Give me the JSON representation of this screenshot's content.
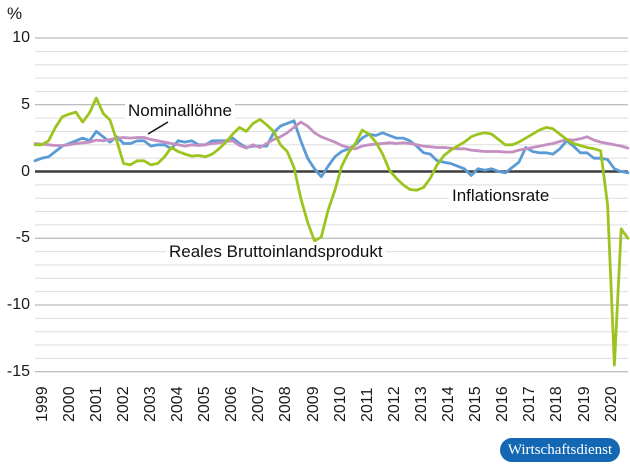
{
  "chart": {
    "unit_label": "%",
    "y_tick_labels": [
      "10",
      "5",
      "0",
      "-5",
      "-10",
      "-15"
    ],
    "x_year_labels": [
      "1999",
      "2000",
      "2001",
      "2002",
      "2003",
      "2004",
      "2005",
      "2006",
      "2007",
      "2008",
      "2009",
      "2010",
      "2011",
      "2012",
      "2013",
      "2014",
      "2015",
      "2016",
      "2017",
      "2018",
      "2019",
      "2020"
    ],
    "annotations": {
      "nominal": "Nominallöhne",
      "inflation": "Inflationsrate",
      "gdp": "Reales Bruttoinlandsprodukt"
    },
    "colors": {
      "gdp_line": "#9cc41f",
      "inflation_line": "#5b9bd5",
      "wages_line": "#c48fc1",
      "zero_line": "#3d3d3d",
      "grid_minor": "#dedede",
      "grid_major": "#a8a8a8",
      "annotation_leader": "#1a1a1a",
      "badge_bg": "#1467b3",
      "badge_text": "#ffffff"
    },
    "badge": {
      "label": "Wirtschaftsdienst"
    }
  },
  "chart_data": {
    "type": "line",
    "frequency": "quarterly",
    "x_start": "1999Q1",
    "x_end": "2020Q4",
    "ylabel": "%",
    "ylim": [
      -15,
      10
    ],
    "grid": "horizontal, every 1 unit; darker at multiples of 5; bold zero line",
    "legend_position": "inline annotations with leader line",
    "series": [
      {
        "name": "Inflationsrate",
        "color": "#5b9bd5",
        "values": [
          0.8,
          1.0,
          1.1,
          1.5,
          1.9,
          2.1,
          2.3,
          2.5,
          2.3,
          3.0,
          2.6,
          2.2,
          2.6,
          2.1,
          2.1,
          2.3,
          2.3,
          1.9,
          2.0,
          2.0,
          1.7,
          2.3,
          2.2,
          2.3,
          2.0,
          2.0,
          2.3,
          2.3,
          2.3,
          2.5,
          2.1,
          1.8,
          1.9,
          1.9,
          1.9,
          2.9,
          3.4,
          3.6,
          3.8,
          2.3,
          1.0,
          0.2,
          -0.4,
          0.4,
          1.1,
          1.5,
          1.7,
          2.0,
          2.5,
          2.8,
          2.7,
          2.9,
          2.7,
          2.5,
          2.5,
          2.3,
          1.9,
          1.4,
          1.3,
          0.8,
          0.7,
          0.6,
          0.4,
          0.2,
          -0.3,
          0.2,
          0.1,
          0.2,
          0.0,
          -0.1,
          0.3,
          0.7,
          1.8,
          1.5,
          1.4,
          1.4,
          1.3,
          1.7,
          2.3,
          1.9,
          1.4,
          1.4,
          1.0,
          1.0,
          0.9,
          0.2,
          0.0,
          -0.1
        ]
      },
      {
        "name": "Nominallöhne",
        "color": "#c48fc1",
        "values": [
          2.1,
          2.05,
          2.0,
          1.95,
          1.95,
          2.0,
          2.1,
          2.15,
          2.2,
          2.35,
          2.3,
          2.4,
          2.5,
          2.55,
          2.5,
          2.55,
          2.55,
          2.4,
          2.3,
          2.2,
          2.1,
          2.0,
          1.9,
          2.0,
          1.95,
          2.0,
          2.1,
          2.15,
          2.25,
          2.3,
          1.95,
          1.75,
          2.0,
          1.8,
          2.1,
          2.4,
          2.6,
          2.9,
          3.3,
          3.7,
          3.4,
          2.9,
          2.6,
          2.4,
          2.2,
          1.95,
          1.8,
          1.7,
          1.9,
          2.0,
          2.05,
          2.1,
          2.15,
          2.1,
          2.15,
          2.1,
          2.0,
          1.9,
          1.85,
          1.8,
          1.8,
          1.75,
          1.7,
          1.7,
          1.6,
          1.55,
          1.5,
          1.5,
          1.5,
          1.45,
          1.45,
          1.6,
          1.7,
          1.8,
          1.9,
          2.0,
          2.1,
          2.25,
          2.4,
          2.35,
          2.45,
          2.6,
          2.35,
          2.2,
          2.1,
          2.0,
          1.9,
          1.75
        ]
      },
      {
        "name": "Reales Bruttoinlandsprodukt",
        "color": "#9cc41f",
        "values": [
          2.0,
          2.0,
          2.3,
          3.3,
          4.1,
          4.3,
          4.45,
          3.7,
          4.4,
          5.5,
          4.35,
          3.85,
          2.3,
          0.6,
          0.5,
          0.8,
          0.8,
          0.5,
          0.6,
          1.1,
          1.8,
          1.5,
          1.3,
          1.15,
          1.2,
          1.1,
          1.3,
          1.7,
          2.2,
          2.8,
          3.3,
          3.0,
          3.6,
          3.9,
          3.5,
          3.0,
          2.0,
          1.5,
          0.3,
          -2.0,
          -3.8,
          -5.2,
          -4.9,
          -2.9,
          -1.4,
          0.4,
          1.4,
          2.1,
          3.1,
          2.8,
          2.2,
          1.3,
          0.1,
          -0.5,
          -1.0,
          -1.35,
          -1.4,
          -1.2,
          -0.5,
          0.5,
          1.2,
          1.6,
          1.9,
          2.2,
          2.6,
          2.8,
          2.9,
          2.8,
          2.4,
          2.0,
          2.0,
          2.2,
          2.5,
          2.8,
          3.1,
          3.3,
          3.2,
          2.8,
          2.4,
          2.1,
          1.95,
          1.8,
          1.7,
          1.55,
          -2.5,
          -14.5,
          -4.3,
          -5.0
        ]
      }
    ]
  }
}
